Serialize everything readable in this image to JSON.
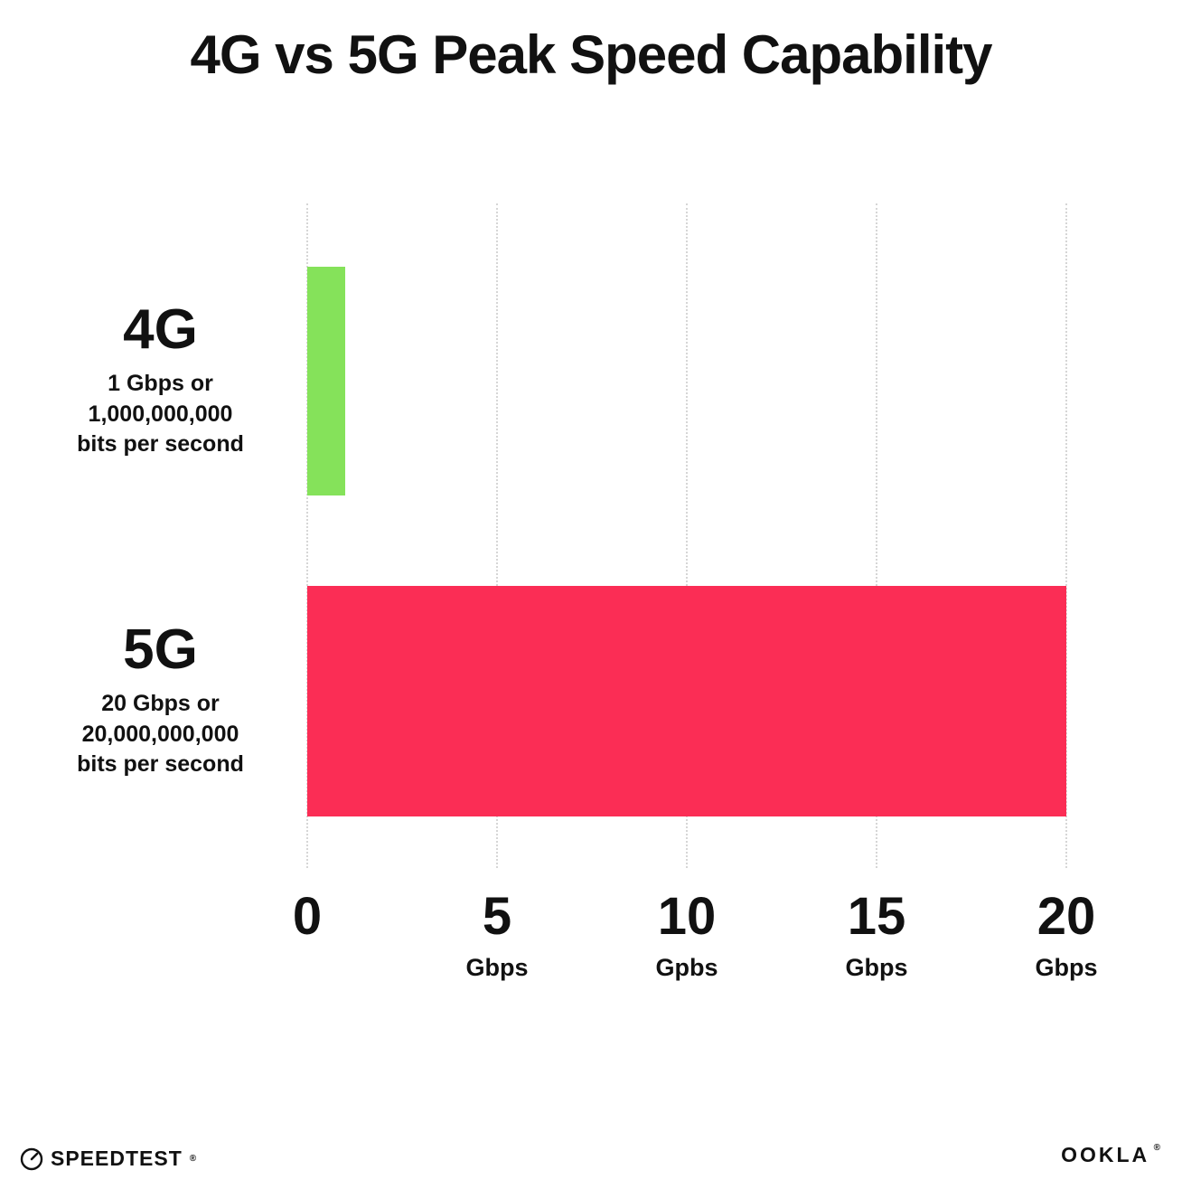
{
  "chart_data": {
    "type": "bar",
    "orientation": "horizontal",
    "title": "4G vs 5G Peak Speed Capability",
    "categories": [
      "4G",
      "5G"
    ],
    "values": [
      1,
      20
    ],
    "bar_colors": [
      "#85e25a",
      "#fb2d55"
    ],
    "category_sublabels": [
      [
        "1 Gbps or",
        "1,000,000,000",
        "bits per second"
      ],
      [
        "20 Gbps or",
        "20,000,000,000",
        "bits per second"
      ]
    ],
    "xlim": [
      0,
      20
    ],
    "x_ticks": [
      {
        "value": 0,
        "label": "0",
        "unit": ""
      },
      {
        "value": 5,
        "label": "5",
        "unit": "Gbps"
      },
      {
        "value": 10,
        "label": "10",
        "unit": "Gpbs"
      },
      {
        "value": 15,
        "label": "15",
        "unit": "Gbps"
      },
      {
        "value": 20,
        "label": "20",
        "unit": "Gbps"
      }
    ],
    "grid": "dotted-vertical",
    "legend": "none"
  },
  "footer": {
    "speedtest_label": "SPEEDTEST",
    "speedtest_mark": "®",
    "ookla_label": "OOKLA",
    "ookla_mark": "®"
  }
}
